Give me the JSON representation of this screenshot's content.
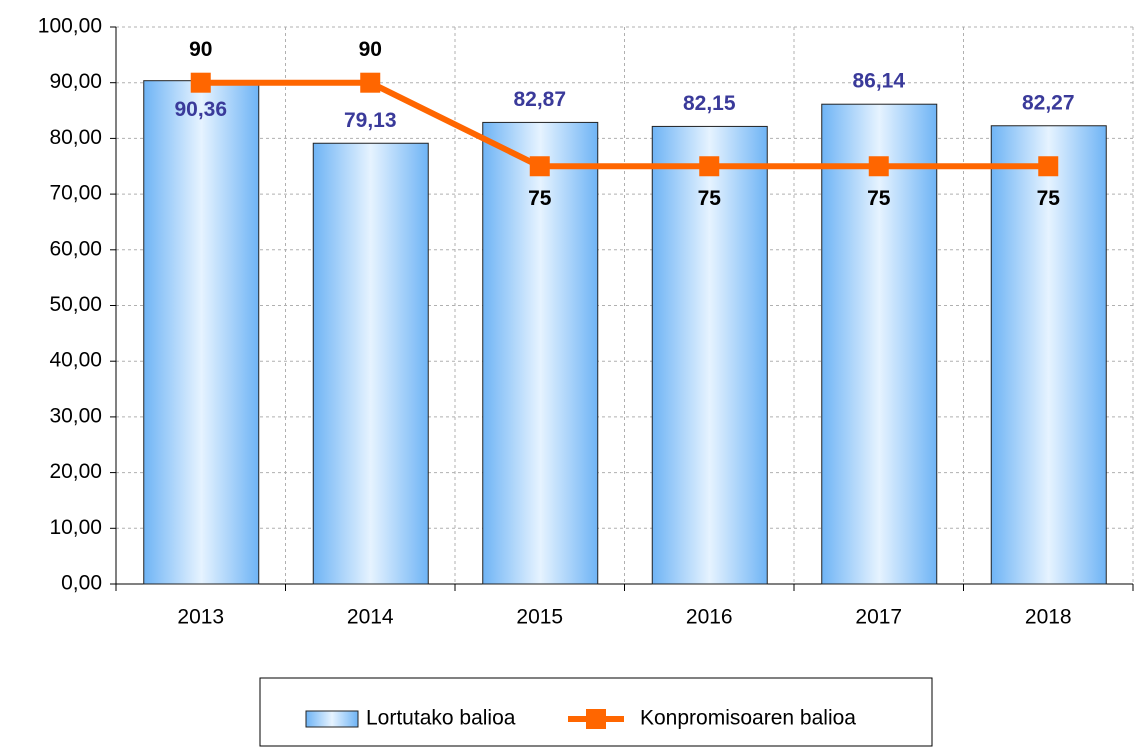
{
  "chart_data": {
    "type": "bar-line",
    "categories": [
      "2013",
      "2014",
      "2015",
      "2016",
      "2017",
      "2018"
    ],
    "series": [
      {
        "name": "Lortutako balioa",
        "type": "bar",
        "color": "#7fbfff",
        "values": [
          90.36,
          79.13,
          82.87,
          82.15,
          86.14,
          82.27
        ],
        "value_labels": [
          "90,36",
          "79,13",
          "82,87",
          "82,15",
          "86,14",
          "82,27"
        ]
      },
      {
        "name": "Konpromisoaren balioa",
        "type": "line",
        "color": "#ff6600",
        "values": [
          90,
          90,
          75,
          75,
          75,
          75
        ]
      }
    ],
    "ylim": [
      0,
      100
    ],
    "yticks": [
      {
        "value": 0,
        "label": "0,00"
      },
      {
        "value": 10,
        "label": "10,00"
      },
      {
        "value": 20,
        "label": "20,00"
      },
      {
        "value": 30,
        "label": "30,00"
      },
      {
        "value": 40,
        "label": "40,00"
      },
      {
        "value": 50,
        "label": "50,00"
      },
      {
        "value": 60,
        "label": "60,00"
      },
      {
        "value": 70,
        "label": "70,00"
      },
      {
        "value": 80,
        "label": "80,00"
      },
      {
        "value": 90,
        "label": "90,00"
      },
      {
        "value": 100,
        "label": "100,00"
      }
    ],
    "grid": true,
    "legend": "bottom"
  }
}
